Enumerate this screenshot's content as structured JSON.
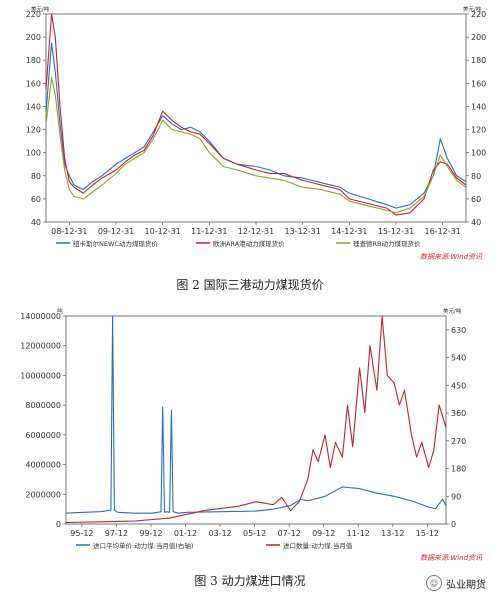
{
  "figures": [
    {
      "caption": "图 2  国际三港动力煤现货价",
      "source": "数据来源:Wind资讯",
      "left_unit": "美元/吨",
      "right_unit": "美元/吨"
    },
    {
      "caption": "图 3  动力煤进口情况",
      "source": "数据来源:Wind资讯",
      "left_unit": "吨",
      "right_unit": "美元/吨"
    }
  ],
  "watermark": {
    "text": "弘业期货",
    "icon": "wechat-icon"
  },
  "colors": {
    "blue": "#2a6db3",
    "red": "#b8262b",
    "olive": "#9c9a2e",
    "axis": "#555555"
  },
  "chart_data": [
    {
      "type": "line",
      "title": "",
      "xlabel": "",
      "ylabel": "",
      "ylim": [
        40,
        220
      ],
      "yticks": [
        40,
        60,
        80,
        100,
        120,
        140,
        160,
        180,
        200,
        220
      ],
      "right_yticks": [
        40,
        60,
        80,
        100,
        120,
        140,
        160,
        180,
        200,
        220
      ],
      "xtick_labels": [
        "08-12-31",
        "09-12-31",
        "10-12-31",
        "11-12-31",
        "12-12-31",
        "13-12-31",
        "14-12-31",
        "15-12-31",
        "16-12-31"
      ],
      "xtick_positions": [
        2009.0,
        2010.0,
        2011.0,
        2012.0,
        2013.0,
        2014.0,
        2015.0,
        2016.0,
        2017.0
      ],
      "xlim": [
        2008.5,
        2017.5
      ],
      "legend_position": "bottom",
      "x": [
        2008.5,
        2008.62,
        2008.7,
        2008.8,
        2008.9,
        2009.0,
        2009.1,
        2009.3,
        2009.5,
        2009.7,
        2010.0,
        2010.2,
        2010.4,
        2010.6,
        2010.8,
        2011.0,
        2011.2,
        2011.4,
        2011.6,
        2011.8,
        2012.0,
        2012.3,
        2012.6,
        2013.0,
        2013.3,
        2013.6,
        2014.0,
        2014.4,
        2014.8,
        2015.0,
        2015.4,
        2015.8,
        2016.0,
        2016.3,
        2016.6,
        2016.8,
        2016.95,
        2017.1,
        2017.3,
        2017.5
      ],
      "series": [
        {
          "name": "纽卡斯尔NEWC动力煤现货价",
          "color": "#2a6db3",
          "values": [
            135,
            195,
            170,
            125,
            90,
            80,
            72,
            68,
            75,
            80,
            90,
            95,
            100,
            105,
            118,
            132,
            125,
            120,
            122,
            118,
            110,
            95,
            90,
            88,
            85,
            80,
            78,
            74,
            70,
            65,
            60,
            55,
            52,
            55,
            65,
            80,
            112,
            95,
            80,
            75
          ]
        },
        {
          "name": "欧洲ARA港动力煤现货价",
          "color": "#b8262b",
          "values": [
            155,
            220,
            200,
            140,
            95,
            75,
            70,
            65,
            72,
            78,
            85,
            92,
            98,
            102,
            115,
            136,
            128,
            122,
            118,
            116,
            108,
            95,
            90,
            85,
            82,
            82,
            76,
            72,
            68,
            60,
            56,
            52,
            46,
            48,
            60,
            85,
            92,
            90,
            78,
            72
          ]
        },
        {
          "name": "理查德RB动力煤现货价",
          "color": "#9c9a2e",
          "values": [
            125,
            165,
            150,
            115,
            85,
            68,
            62,
            60,
            66,
            72,
            82,
            90,
            95,
            100,
            112,
            128,
            120,
            118,
            116,
            112,
            100,
            88,
            85,
            80,
            78,
            76,
            70,
            68,
            64,
            58,
            54,
            50,
            48,
            52,
            62,
            80,
            98,
            88,
            76,
            70
          ]
        }
      ]
    },
    {
      "type": "line",
      "title": "",
      "xlabel": "",
      "ylabel": "",
      "ylim": [
        0,
        14000000
      ],
      "yticks": [
        0,
        2000000,
        4000000,
        6000000,
        8000000,
        10000000,
        12000000,
        14000000
      ],
      "ytick_labels": [
        "0",
        "2000000",
        "4000000",
        "6000000",
        "8000000",
        "10000000",
        "12000000",
        "14000000"
      ],
      "right_ylim": [
        0,
        675
      ],
      "right_yticks": [
        0,
        90,
        180,
        270,
        360,
        450,
        540,
        630
      ],
      "xtick_labels": [
        "95-12",
        "97-12",
        "99-12",
        "01-12",
        "03-12",
        "05-12",
        "07-12",
        "09-12",
        "11-12",
        "13-12",
        "15-12"
      ],
      "xtick_positions": [
        1995.92,
        1997.92,
        1999.92,
        2001.92,
        2003.92,
        2005.92,
        2007.92,
        2009.92,
        2011.92,
        2013.92,
        2015.92
      ],
      "xlim": [
        1995.0,
        2017.0
      ],
      "legend_position": "bottom",
      "series": [
        {
          "name": "进口平均单价:动力煤:当月值(右轴)",
          "color": "#2a6db3",
          "axis": "right",
          "x": [
            1995.0,
            1996.0,
            1997.0,
            1997.6,
            1997.7,
            1997.8,
            1998.0,
            1999.0,
            2000.0,
            2000.5,
            2000.6,
            2000.7,
            2000.8,
            2001.0,
            2001.1,
            2001.2,
            2001.5,
            2002.0,
            2004.0,
            2006.0,
            2007.0,
            2008.0,
            2008.6,
            2009.0,
            2010.0,
            2011.0,
            2012.0,
            2013.0,
            2014.0,
            2015.0,
            2016.0,
            2016.4,
            2016.8,
            2017.0
          ],
          "values": [
            35,
            38,
            40,
            45,
            675,
            45,
            38,
            35,
            35,
            40,
            380,
            38,
            40,
            38,
            370,
            40,
            35,
            38,
            40,
            42,
            48,
            60,
            80,
            75,
            90,
            120,
            115,
            100,
            90,
            75,
            55,
            50,
            80,
            60
          ]
        },
        {
          "name": "进口数量:动力煤:当月值",
          "color": "#b8262b",
          "axis": "left",
          "x": [
            1995.0,
            1997.0,
            1999.0,
            2001.0,
            2003.0,
            2005.0,
            2006.0,
            2007.0,
            2007.5,
            2008.0,
            2008.5,
            2009.0,
            2009.3,
            2009.6,
            2010.0,
            2010.3,
            2010.6,
            2011.0,
            2011.3,
            2011.6,
            2012.0,
            2012.3,
            2012.6,
            2013.0,
            2013.3,
            2013.6,
            2014.0,
            2014.3,
            2014.6,
            2015.0,
            2015.3,
            2015.6,
            2016.0,
            2016.3,
            2016.6,
            2017.0
          ],
          "values": [
            100000,
            150000,
            200000,
            400000,
            900000,
            1200000,
            1500000,
            1300000,
            1800000,
            900000,
            1500000,
            3000000,
            5000000,
            4200000,
            6000000,
            3800000,
            5500000,
            4500000,
            8000000,
            5200000,
            10500000,
            7500000,
            12000000,
            9000000,
            14000000,
            10000000,
            9500000,
            8000000,
            9000000,
            6000000,
            4500000,
            5500000,
            3800000,
            5000000,
            8000000,
            6500000
          ]
        }
      ]
    }
  ]
}
